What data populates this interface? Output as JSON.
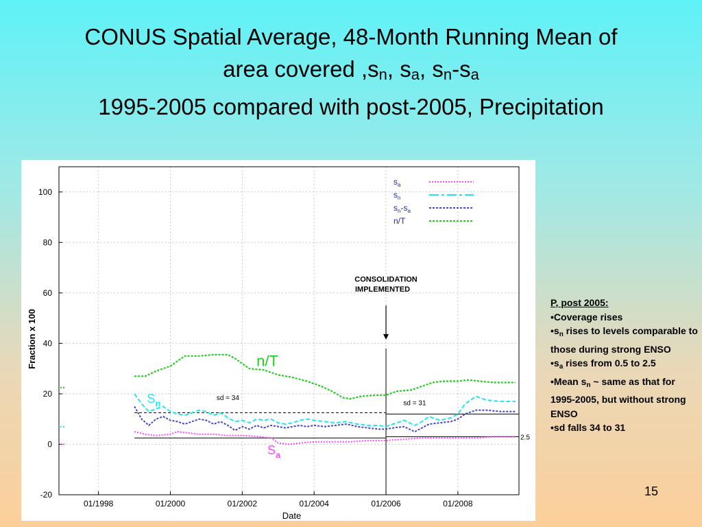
{
  "slide": {
    "title_line1": "CONUS Spatial Average, 48-Month Running Mean of",
    "title_line2_prefix": "area covered ,s",
    "title_sub_n": "n",
    "title_sep1": ", s",
    "title_sub_a": "a",
    "title_sep2": ", s",
    "title_sub_n2": "n",
    "title_sep3": "-s",
    "title_sub_a2": "a",
    "title_line3": "1995-2005 compared with post-2005, Precipitation",
    "page_number": "15"
  },
  "notes": {
    "heading": "P, post 2005:",
    "b1": "•Coverage rises",
    "b2_pre": "•s",
    "b2_sub": "n",
    "b2_post": " rises to levels comparable to those during strong ENSO",
    "b3_pre": "•s",
    "b3_sub": "a",
    "b3_post": " rises from 0.5 to 2.5",
    "b4_pre": "•Mean s",
    "b4_sub": "n",
    "b4_post": " ~ same as that for 1995-2005, but without strong ENSO",
    "b5": "•sd falls 34 to 31"
  },
  "chart_data": {
    "type": "line",
    "xlabel": "Date",
    "ylabel": "Fraction x 100",
    "ylim": [
      -20,
      110
    ],
    "yticks": [
      -20,
      0,
      20,
      40,
      60,
      80,
      100
    ],
    "xlim": [
      1996.9,
      2009.7
    ],
    "xticks": [
      {
        "x": 1998,
        "label": "01/1998"
      },
      {
        "x": 2000,
        "label": "01/2000"
      },
      {
        "x": 2002,
        "label": "01/2002"
      },
      {
        "x": 2004,
        "label": "01/2004"
      },
      {
        "x": 2006,
        "label": "01/2006"
      },
      {
        "x": 2008,
        "label": "01/2008"
      }
    ],
    "grid": true,
    "legend_position": "top-right",
    "legend": [
      {
        "main": "s",
        "sub": "a",
        "color": "#ff44ff",
        "dash": "2,2"
      },
      {
        "main": "s",
        "sub": "n",
        "color": "#22e6ee",
        "dash": "14,4,4,4"
      },
      {
        "main": "s",
        "sub": "n",
        "mid": "-s",
        "sub2": "a",
        "color": "#4444cc",
        "dash": "3,2"
      },
      {
        "main": "n/T",
        "color": "#22cc22",
        "dash": "3,2"
      }
    ],
    "series": [
      {
        "key": "nT",
        "color": "#22cc22",
        "dash": "3,2",
        "width": 2.2,
        "points": [
          [
            1999,
            27
          ],
          [
            1999.3,
            27
          ],
          [
            1999.6,
            29
          ],
          [
            2000,
            31
          ],
          [
            2000.4,
            35
          ],
          [
            2000.8,
            35
          ],
          [
            2001.2,
            35.5
          ],
          [
            2001.6,
            35.5
          ],
          [
            2001.8,
            34
          ],
          [
            2002.2,
            30
          ],
          [
            2002.6,
            29.5
          ],
          [
            2003,
            27.5
          ],
          [
            2003.4,
            26.5
          ],
          [
            2003.8,
            25
          ],
          [
            2004.2,
            23
          ],
          [
            2004.5,
            21
          ],
          [
            2004.8,
            18.5
          ],
          [
            2005.0,
            18
          ],
          [
            2005.3,
            19
          ],
          [
            2005.7,
            19.5
          ],
          [
            2006,
            19.5
          ],
          [
            2006.3,
            21
          ],
          [
            2006.7,
            21.5
          ],
          [
            2007,
            23
          ],
          [
            2007.3,
            24.5
          ],
          [
            2007.6,
            25
          ],
          [
            2008,
            25
          ],
          [
            2008.3,
            25.5
          ],
          [
            2008.6,
            25
          ],
          [
            2009,
            24.5
          ],
          [
            2009.6,
            24.5
          ]
        ]
      },
      {
        "key": "sn",
        "color": "#22e6ee",
        "dash": "6,3",
        "width": 2,
        "points": [
          [
            1999,
            20
          ],
          [
            1999.2,
            16
          ],
          [
            1999.4,
            13
          ],
          [
            1999.6,
            14
          ],
          [
            1999.8,
            15
          ],
          [
            2000,
            13
          ],
          [
            2000.2,
            12
          ],
          [
            2000.4,
            11.5
          ],
          [
            2000.6,
            12.5
          ],
          [
            2000.8,
            13.5
          ],
          [
            2001,
            13
          ],
          [
            2001.2,
            11.5
          ],
          [
            2001.4,
            12.5
          ],
          [
            2001.6,
            10.5
          ],
          [
            2001.8,
            9
          ],
          [
            2002,
            9.5
          ],
          [
            2002.2,
            8.5
          ],
          [
            2002.4,
            10
          ],
          [
            2002.6,
            9.5
          ],
          [
            2002.8,
            10
          ],
          [
            2003,
            8.5
          ],
          [
            2003.2,
            8
          ],
          [
            2003.4,
            8.5
          ],
          [
            2003.6,
            9.5
          ],
          [
            2003.8,
            10
          ],
          [
            2004,
            9.5
          ],
          [
            2004.3,
            9
          ],
          [
            2004.6,
            8.5
          ],
          [
            2004.9,
            9
          ],
          [
            2005.2,
            8
          ],
          [
            2005.5,
            7.5
          ],
          [
            2005.8,
            7.5
          ],
          [
            2006,
            7
          ],
          [
            2006.2,
            8
          ],
          [
            2006.5,
            9.5
          ],
          [
            2006.8,
            7.5
          ],
          [
            2007,
            9
          ],
          [
            2007.2,
            11
          ],
          [
            2007.5,
            9.5
          ],
          [
            2007.8,
            10.5
          ],
          [
            2008.0,
            12
          ],
          [
            2008.2,
            16
          ],
          [
            2008.5,
            19
          ],
          [
            2008.8,
            17.5
          ],
          [
            2009.2,
            17
          ],
          [
            2009.6,
            17
          ]
        ]
      },
      {
        "key": "sn_sa",
        "color": "#4444cc",
        "dash": "3,2",
        "width": 2,
        "points": [
          [
            1999,
            15
          ],
          [
            1999.2,
            10
          ],
          [
            1999.4,
            7.5
          ],
          [
            1999.6,
            10
          ],
          [
            1999.8,
            11
          ],
          [
            2000,
            9.5
          ],
          [
            2000.2,
            9
          ],
          [
            2000.4,
            8
          ],
          [
            2000.6,
            9
          ],
          [
            2000.8,
            10
          ],
          [
            2001,
            9.5
          ],
          [
            2001.2,
            8
          ],
          [
            2001.4,
            9
          ],
          [
            2001.6,
            7.5
          ],
          [
            2001.8,
            5.5
          ],
          [
            2002,
            7
          ],
          [
            2002.2,
            6
          ],
          [
            2002.4,
            7.5
          ],
          [
            2002.6,
            6.5
          ],
          [
            2002.8,
            7.5
          ],
          [
            2003,
            7
          ],
          [
            2003.2,
            6.5
          ],
          [
            2003.4,
            7
          ],
          [
            2003.6,
            7.5
          ],
          [
            2003.8,
            7
          ],
          [
            2004,
            7.5
          ],
          [
            2004.3,
            7
          ],
          [
            2004.6,
            7.5
          ],
          [
            2004.9,
            8
          ],
          [
            2005.2,
            7
          ],
          [
            2005.5,
            6.5
          ],
          [
            2005.8,
            6
          ],
          [
            2006,
            6
          ],
          [
            2006.2,
            6.5
          ],
          [
            2006.5,
            7
          ],
          [
            2006.8,
            5
          ],
          [
            2007,
            6.5
          ],
          [
            2007.2,
            8
          ],
          [
            2007.5,
            8.5
          ],
          [
            2007.8,
            9
          ],
          [
            2008.0,
            10
          ],
          [
            2008.2,
            12
          ],
          [
            2008.5,
            13.5
          ],
          [
            2008.8,
            13.5
          ],
          [
            2009.2,
            13
          ],
          [
            2009.6,
            13
          ]
        ]
      },
      {
        "key": "sa",
        "color": "#ff44ff",
        "dash": "2,2",
        "width": 2,
        "points": [
          [
            1999,
            5
          ],
          [
            1999.3,
            4
          ],
          [
            1999.6,
            3.5
          ],
          [
            2000,
            4
          ],
          [
            2000.2,
            5
          ],
          [
            2000.5,
            4.5
          ],
          [
            2000.8,
            4
          ],
          [
            2001.2,
            4
          ],
          [
            2001.6,
            3.5
          ],
          [
            2002,
            3.5
          ],
          [
            2002.5,
            3
          ],
          [
            2002.8,
            2.5
          ],
          [
            2003.0,
            0.5
          ],
          [
            2003.3,
            0
          ],
          [
            2003.6,
            0.5
          ],
          [
            2004,
            1
          ],
          [
            2004.5,
            1
          ],
          [
            2005,
            1
          ],
          [
            2005.5,
            1.5
          ],
          [
            2006,
            1.5
          ],
          [
            2006.5,
            2
          ],
          [
            2007,
            2.5
          ],
          [
            2007.5,
            2.5
          ],
          [
            2008,
            2.5
          ],
          [
            2008.5,
            2.5
          ],
          [
            2009,
            3
          ],
          [
            2009.6,
            3
          ]
        ]
      }
    ],
    "stubs": [
      {
        "color": "#22cc22",
        "y": 22.5
      },
      {
        "color": "#22e6ee",
        "y": 7
      },
      {
        "color": "#ff44ff",
        "y": 0
      }
    ],
    "reference_lines": [
      {
        "x1": 1999,
        "x2": 2006,
        "y": 12.5,
        "style": "dashed"
      },
      {
        "x1": 1999,
        "x2": 2006,
        "y": 2.5,
        "style": "solid"
      },
      {
        "x1": 2006,
        "x2": 2009.7,
        "y": 12,
        "style": "solid"
      },
      {
        "x1": 2006,
        "x2": 2009.7,
        "y": 3,
        "style": "solid"
      }
    ],
    "event_x": 2006,
    "annotations": {
      "consolidation_line1": "CONSOLIDATION",
      "consolidation_line2": "IMPLEMENTED",
      "sd_left": "sd = 34",
      "sd_right": "sd = 31",
      "right_value": "2.5",
      "label_nT": "n/T",
      "label_sn_main": "S",
      "label_sn_sub": "n",
      "label_sa_main": "S",
      "label_sa_sub": "a"
    }
  }
}
